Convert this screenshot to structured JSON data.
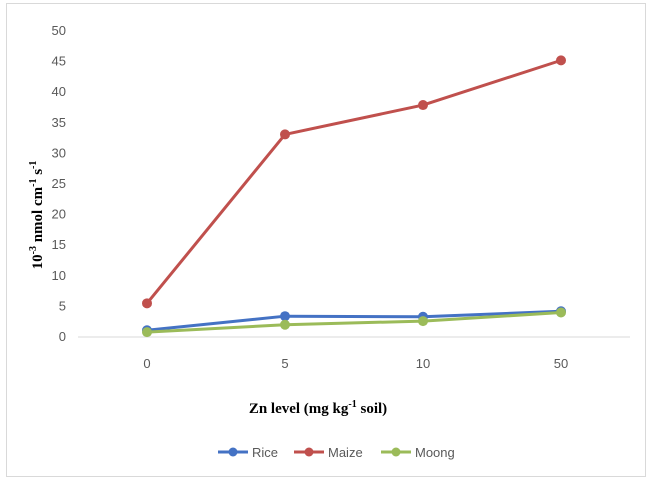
{
  "chart_data": {
    "type": "line",
    "categories": [
      "0",
      "5",
      "10",
      "50"
    ],
    "series": [
      {
        "name": "Rice",
        "color": "#4472c4",
        "values": [
          1.1,
          3.4,
          3.3,
          4.2
        ]
      },
      {
        "name": "Maize",
        "color": "#c0504d",
        "values": [
          5.5,
          33.1,
          37.9,
          45.2
        ]
      },
      {
        "name": "Moong",
        "color": "#9bbb59",
        "values": [
          0.8,
          2.0,
          2.6,
          4.0
        ]
      }
    ],
    "ylim": [
      0,
      50
    ],
    "yticks": [
      0,
      5,
      10,
      15,
      20,
      25,
      30,
      35,
      40,
      45,
      50
    ],
    "xlabel": {
      "main": "Zn level (mg kg",
      "sup": "-1",
      "tail": " soil)"
    },
    "ylabel": {
      "p1": "10",
      "s1": "-3",
      "p2": " nmol cm",
      "s2": "-1",
      "p3": " s",
      "s3": "-1"
    },
    "legend_position": "bottom",
    "grid": false
  }
}
